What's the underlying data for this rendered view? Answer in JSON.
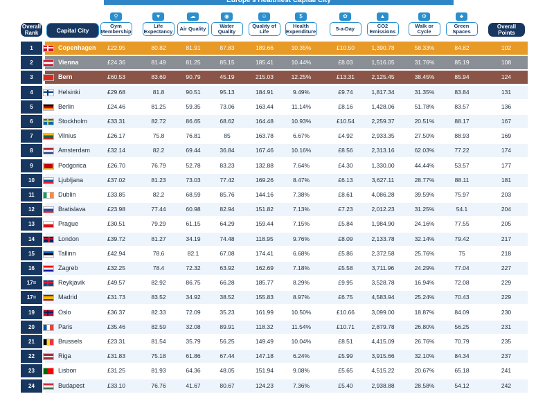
{
  "title": "Europe's Healthiest Capital City",
  "headers": {
    "rank": "Overall Rank",
    "city": "Capital City",
    "columns": [
      {
        "label": "Gym Membership",
        "icon": "dumbbell-icon",
        "glyph": "⚲"
      },
      {
        "label": "Life Expectancy",
        "icon": "heart-icon",
        "glyph": "♥"
      },
      {
        "label": "Air Quality",
        "icon": "cloud-icon",
        "glyph": "☁"
      },
      {
        "label": "Water Quality",
        "icon": "droplet-icon",
        "glyph": "◉"
      },
      {
        "label": "Quality of Life",
        "icon": "smile-icon",
        "glyph": "☺"
      },
      {
        "label": "Health Expenditure",
        "icon": "money-icon",
        "glyph": "$"
      },
      {
        "label": "5-a-Day",
        "icon": "apple-icon",
        "glyph": "✿"
      },
      {
        "label": "CO2 Emissions",
        "icon": "factory-icon",
        "glyph": "▲"
      },
      {
        "label": "Walk or Cycle",
        "icon": "bicycle-icon",
        "glyph": "⚙"
      },
      {
        "label": "Green Spaces",
        "icon": "tree-icon",
        "glyph": "♣"
      }
    ],
    "points": "Overall Points"
  },
  "colors": {
    "navy": "#173760",
    "blue": "#2a8fcc",
    "gold": "#e89a27",
    "silver": "#8a8f96",
    "bronze": "#8a5548",
    "stripe": "#eef4fb"
  },
  "chart_data": {
    "type": "table",
    "title": "Europe's Healthiest Capital City",
    "columns": [
      "Overall Rank",
      "Capital City",
      "Gym Membership",
      "Life Expectancy",
      "Air Quality",
      "Water Quality",
      "Quality of Life",
      "Health Expenditure",
      "5-a-Day",
      "CO2 Emissions",
      "Walk or Cycle",
      "Green Spaces",
      "Overall Points"
    ],
    "rows": [
      {
        "rank": "1",
        "city": "Copenhagen",
        "flag": "dk",
        "values": [
          "£22.95",
          "80.82",
          "81.91",
          "87.83",
          "189.66",
          "10.35%",
          "£10.50",
          "1,390.78",
          "58.33%",
          "84.82",
          "102"
        ]
      },
      {
        "rank": "2",
        "city": "Vienna",
        "flag": "at",
        "values": [
          "£24.36",
          "81.49",
          "81.25",
          "85.15",
          "185.41",
          "10.44%",
          "£8.03",
          "1,516.05",
          "31.76%",
          "85.19",
          "108"
        ]
      },
      {
        "rank": "3",
        "city": "Bern",
        "flag": "ch",
        "values": [
          "£60.53",
          "83.69",
          "90.79",
          "45.19",
          "215.03",
          "12.25%",
          "£13.31",
          "2,125.45",
          "38.45%",
          "85.94",
          "124"
        ]
      },
      {
        "rank": "4",
        "city": "Helsinki",
        "flag": "fi",
        "values": [
          "£29.68",
          "81.8",
          "90.51",
          "95.13",
          "184.91",
          "9.49%",
          "£9.74",
          "1,817.34",
          "31.35%",
          "83.84",
          "131"
        ]
      },
      {
        "rank": "5",
        "city": "Berlin",
        "flag": "de",
        "values": [
          "£24.46",
          "81.25",
          "59.35",
          "73.06",
          "163.44",
          "11.14%",
          "£8.16",
          "1,428.06",
          "51.78%",
          "83.57",
          "136"
        ]
      },
      {
        "rank": "6",
        "city": "Stockholm",
        "flag": "se",
        "values": [
          "£33.31",
          "82.72",
          "86.65",
          "68.62",
          "164.48",
          "10.93%",
          "£10.54",
          "2,259.37",
          "20.51%",
          "88.17",
          "167"
        ]
      },
      {
        "rank": "7",
        "city": "Vilnius",
        "flag": "lt",
        "values": [
          "£26.17",
          "75.8",
          "76.81",
          "85",
          "163.78",
          "6.67%",
          "£4.92",
          "2,933.35",
          "27.50%",
          "88.93",
          "169"
        ]
      },
      {
        "rank": "8",
        "city": "Amsterdam",
        "flag": "nl",
        "values": [
          "£32.14",
          "82.2",
          "69.44",
          "36.84",
          "167.46",
          "10.16%",
          "£8.56",
          "2,313.16",
          "62.03%",
          "77.22",
          "174"
        ]
      },
      {
        "rank": "9",
        "city": "Podgorica",
        "flag": "me",
        "values": [
          "£26.70",
          "76.79",
          "52.78",
          "83.23",
          "132.88",
          "7.64%",
          "£4.30",
          "1,330.00",
          "44.44%",
          "53.57",
          "177"
        ]
      },
      {
        "rank": "10",
        "city": "Ljubljana",
        "flag": "si",
        "values": [
          "£37.02",
          "81.23",
          "73.03",
          "77.42",
          "169.26",
          "8.47%",
          "£6.13",
          "3,627.11",
          "28.77%",
          "88.11",
          "181"
        ]
      },
      {
        "rank": "11",
        "city": "Dublin",
        "flag": "ie",
        "values": [
          "£33.85",
          "82.2",
          "68.59",
          "85.76",
          "144.16",
          "7.38%",
          "£8.61",
          "4,086.28",
          "39.59%",
          "75.97",
          "203"
        ]
      },
      {
        "rank": "12",
        "city": "Bratislava",
        "flag": "sk",
        "values": [
          "£23.98",
          "77.44",
          "60.98",
          "82.94",
          "151.82",
          "7.13%",
          "£7.23",
          "2,012.23",
          "31.25%",
          "54.1",
          "204"
        ]
      },
      {
        "rank": "13",
        "city": "Prague",
        "flag": "cz",
        "values": [
          "£30.51",
          "79.29",
          "61.15",
          "64.29",
          "159.44",
          "7.15%",
          "£5.84",
          "1,984.90",
          "24.16%",
          "77.55",
          "205"
        ]
      },
      {
        "rank": "14",
        "city": "London",
        "flag": "gb",
        "values": [
          "£39.72",
          "81.27",
          "34.19",
          "74.48",
          "118.95",
          "9.76%",
          "£8.09",
          "2,133.78",
          "32.14%",
          "79.42",
          "217"
        ]
      },
      {
        "rank": "15",
        "city": "Tallinn",
        "flag": "ee",
        "values": [
          "£42.94",
          "78.6",
          "82.1",
          "67.08",
          "174.41",
          "6.68%",
          "£5.86",
          "2,372.58",
          "25.76%",
          "75",
          "218"
        ]
      },
      {
        "rank": "16",
        "city": "Zagreb",
        "flag": "hr",
        "values": [
          "£32.25",
          "78.4",
          "72.32",
          "63.92",
          "162.69",
          "7.18%",
          "£5.58",
          "3,711.96",
          "24.29%",
          "77.04",
          "227"
        ]
      },
      {
        "rank": "17=",
        "city": "Reykjavik",
        "flag": "is",
        "values": [
          "£49.57",
          "82.92",
          "86.75",
          "66.28",
          "185.77",
          "8.29%",
          "£9.95",
          "3,528.78",
          "16.94%",
          "72.08",
          "229"
        ]
      },
      {
        "rank": "17=",
        "city": "Madrid",
        "flag": "es",
        "values": [
          "£31.73",
          "83.52",
          "34.92",
          "38.52",
          "155.83",
          "8.97%",
          "£6.75",
          "4,583.94",
          "25.24%",
          "70.43",
          "229"
        ]
      },
      {
        "rank": "19",
        "city": "Oslo",
        "flag": "no",
        "values": [
          "£36.37",
          "82.33",
          "72.09",
          "35.23",
          "161.99",
          "10.50%",
          "£10.66",
          "3,099.00",
          "18.87%",
          "84.09",
          "230"
        ]
      },
      {
        "rank": "20",
        "city": "Paris",
        "flag": "fr",
        "values": [
          "£35.46",
          "82.59",
          "32.08",
          "89.91",
          "118.32",
          "11.54%",
          "£10.71",
          "2,879.78",
          "26.80%",
          "56.25",
          "231"
        ]
      },
      {
        "rank": "21",
        "city": "Brussels",
        "flag": "be",
        "values": [
          "£23.31",
          "81.54",
          "35.79",
          "56.25",
          "149.49",
          "10.04%",
          "£8.51",
          "4,415.09",
          "26.76%",
          "70.79",
          "235"
        ]
      },
      {
        "rank": "22",
        "city": "Riga",
        "flag": "lv",
        "values": [
          "£31.83",
          "75.18",
          "61.86",
          "67.44",
          "147.18",
          "6.24%",
          "£5.99",
          "3,915.66",
          "32.10%",
          "84.34",
          "237"
        ]
      },
      {
        "rank": "23",
        "city": "Lisbon",
        "flag": "pt",
        "values": [
          "£31.25",
          "81.93",
          "64.36",
          "48.05",
          "151.94",
          "9.08%",
          "£5.65",
          "4,515.22",
          "20.67%",
          "65.18",
          "241"
        ]
      },
      {
        "rank": "24",
        "city": "Budapest",
        "flag": "hu",
        "values": [
          "£33.10",
          "76.76",
          "41.67",
          "80.67",
          "124.23",
          "7.36%",
          "£5.40",
          "2,938.88",
          "28.58%",
          "54.12",
          "242"
        ]
      }
    ]
  }
}
